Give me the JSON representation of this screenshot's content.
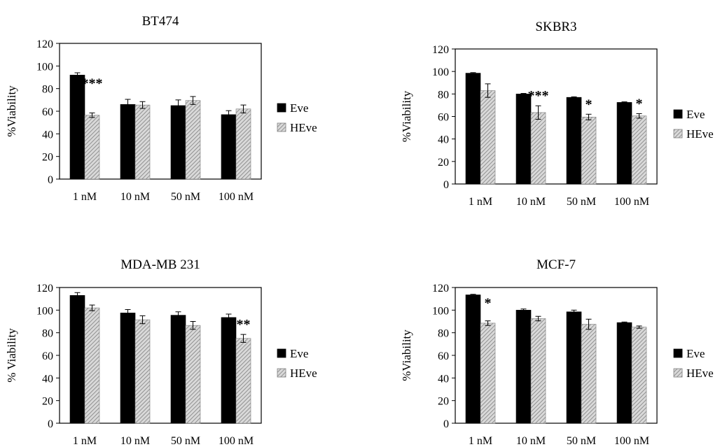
{
  "chart_data": [
    {
      "type": "bar",
      "title": "BT474",
      "ylabel": "%Viability",
      "categories": [
        "1 nM",
        "10 nM",
        "50 nM",
        "100 nM"
      ],
      "ylim": [
        0,
        120
      ],
      "yticks": [
        0,
        20,
        40,
        60,
        80,
        100,
        120
      ],
      "series": [
        {
          "name": "Eve",
          "values": [
            92,
            66,
            65,
            57
          ],
          "errors": [
            2,
            4.5,
            5,
            3.5
          ]
        },
        {
          "name": "HEve",
          "values": [
            56.5,
            65.5,
            69.5,
            62
          ],
          "errors": [
            2,
            3,
            3.5,
            3.5
          ]
        }
      ],
      "annotations": [
        {
          "category_index": 0,
          "text": "***"
        }
      ],
      "legend_position": "right"
    },
    {
      "type": "bar",
      "title": "SKBR3",
      "ylabel": "%Viability",
      "categories": [
        "1 nM",
        "10 nM",
        "50 nM",
        "100 nM"
      ],
      "ylim": [
        0,
        120
      ],
      "yticks": [
        0,
        20,
        40,
        60,
        80,
        100,
        120
      ],
      "series": [
        {
          "name": "Eve",
          "values": [
            98.5,
            80,
            77,
            72.5
          ],
          "errors": [
            0.5,
            0.5,
            0.5,
            0.5
          ]
        },
        {
          "name": "HEve",
          "values": [
            83,
            63.5,
            59.5,
            60.5
          ],
          "errors": [
            6,
            6,
            2.5,
            2
          ]
        }
      ],
      "annotations": [
        {
          "category_index": 1,
          "text": "***"
        },
        {
          "category_index": 2,
          "text": "*"
        },
        {
          "category_index": 3,
          "text": "*"
        }
      ],
      "legend_position": "right"
    },
    {
      "type": "bar",
      "title": "MDA-MB 231",
      "ylabel": "% Viability",
      "categories": [
        "1 nM",
        "10 nM",
        "50 nM",
        "100 nM"
      ],
      "ylim": [
        0,
        120
      ],
      "yticks": [
        0,
        20,
        40,
        60,
        80,
        100,
        120
      ],
      "series": [
        {
          "name": "Eve",
          "values": [
            113,
            97.5,
            95.5,
            93.5
          ],
          "errors": [
            2.5,
            3,
            3,
            3
          ]
        },
        {
          "name": "HEve",
          "values": [
            102,
            91.5,
            86.5,
            75
          ],
          "errors": [
            2.5,
            3.5,
            3.5,
            3.5
          ]
        }
      ],
      "annotations": [
        {
          "category_index": 3,
          "text": "**"
        }
      ],
      "legend_position": "right"
    },
    {
      "type": "bar",
      "title": "MCF-7",
      "ylabel": "%Viability",
      "categories": [
        "1 nM",
        "10 nM",
        "50 nM",
        "100 nM"
      ],
      "ylim": [
        0,
        120
      ],
      "yticks": [
        0,
        20,
        40,
        60,
        80,
        100,
        120
      ],
      "series": [
        {
          "name": "Eve",
          "values": [
            113.5,
            100,
            98.5,
            89
          ],
          "errors": [
            0.5,
            1,
            1.5,
            0.5
          ]
        },
        {
          "name": "HEve",
          "values": [
            88.5,
            92.5,
            87.5,
            85
          ],
          "errors": [
            2,
            2,
            4.5,
            1
          ]
        }
      ],
      "annotations": [
        {
          "category_index": 0,
          "text": "*"
        }
      ],
      "legend_position": "right"
    }
  ],
  "colors": {
    "eve_fill": "#000000",
    "heve_fill": "#d9d9d9",
    "heve_hatch": "#7f7f7f",
    "axis": "#000000"
  }
}
